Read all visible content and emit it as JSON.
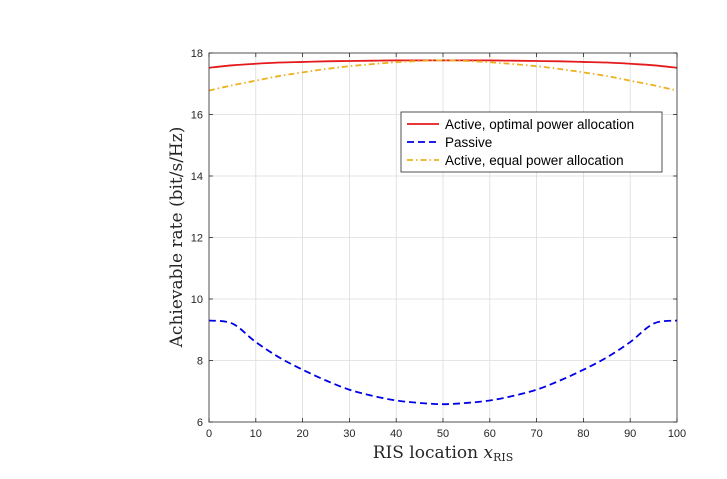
{
  "chart_data": {
    "type": "line",
    "title": "",
    "xlabel": "RIS location ",
    "xlabel_math_main": "x",
    "xlabel_math_sub": "RIS",
    "ylabel": "Achievable rate (bit/s/Hz)",
    "xlim": [
      0,
      100
    ],
    "ylim": [
      6,
      18
    ],
    "xticks": [
      0,
      10,
      20,
      30,
      40,
      50,
      60,
      70,
      80,
      90,
      100
    ],
    "yticks": [
      6,
      8,
      10,
      12,
      14,
      16,
      18
    ],
    "grid": true,
    "legend_position": "top-right",
    "x": [
      0,
      5,
      10,
      15,
      20,
      25,
      30,
      35,
      40,
      45,
      50,
      55,
      60,
      65,
      70,
      75,
      80,
      85,
      90,
      95,
      100
    ],
    "series": [
      {
        "name": "Active, optimal power allocation",
        "color": "#e41a1c",
        "dash": "solid",
        "values": [
          17.52,
          17.6,
          17.65,
          17.69,
          17.71,
          17.73,
          17.74,
          17.75,
          17.76,
          17.76,
          17.76,
          17.76,
          17.76,
          17.75,
          17.74,
          17.73,
          17.71,
          17.69,
          17.65,
          17.6,
          17.52
        ]
      },
      {
        "name": "Passive",
        "color": "#0000e6",
        "dash": "dashed",
        "values": [
          9.3,
          9.2,
          8.6,
          8.1,
          7.7,
          7.35,
          7.05,
          6.85,
          6.7,
          6.62,
          6.58,
          6.62,
          6.7,
          6.85,
          7.05,
          7.35,
          7.7,
          8.1,
          8.6,
          9.2,
          9.3
        ]
      },
      {
        "name": "Active, equal power allocation",
        "color": "#edb120",
        "dash": "dashdot",
        "values": [
          16.78,
          16.95,
          17.1,
          17.25,
          17.37,
          17.48,
          17.57,
          17.64,
          17.7,
          17.74,
          17.76,
          17.74,
          17.7,
          17.64,
          17.57,
          17.48,
          17.37,
          17.25,
          17.1,
          16.95,
          16.78
        ]
      }
    ]
  }
}
